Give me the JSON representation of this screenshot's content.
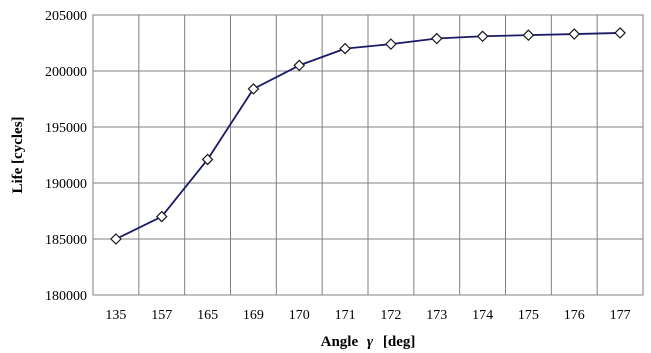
{
  "chart_data": {
    "type": "line",
    "title": "",
    "xlabel_prefix": "Angle",
    "xlabel_symbol": "γ",
    "xlabel_suffix": "[deg]",
    "ylabel": "Life [cycles]",
    "categories": [
      "135",
      "157",
      "165",
      "169",
      "170",
      "171",
      "172",
      "173",
      "174",
      "175",
      "176",
      "177"
    ],
    "series": [
      {
        "values": [
          185000,
          187000,
          192100,
          198400,
          200500,
          202000,
          202400,
          202900,
          203100,
          203200,
          203300,
          203400
        ]
      }
    ],
    "ylim": [
      180000,
      205000
    ],
    "yticks": [
      180000,
      185000,
      190000,
      195000,
      200000,
      205000
    ],
    "grid": true,
    "legend": "none",
    "marker": "diamond",
    "colors": {
      "line": "#1a1a66",
      "marker_fill": "#ffffff",
      "marker_stroke": "#1a1a1a",
      "grid": "#808080",
      "plot_border": "#808080"
    }
  }
}
